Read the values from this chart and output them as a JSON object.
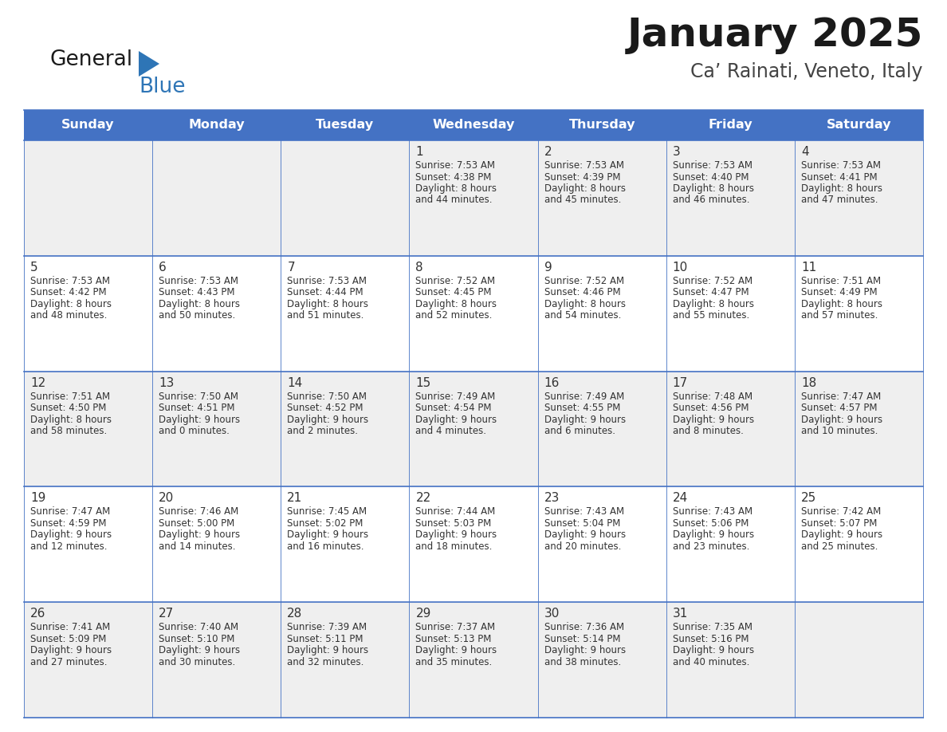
{
  "title": "January 2025",
  "subtitle": "Ca’ Rainati, Veneto, Italy",
  "header_bg": "#4472c4",
  "header_text": "#ffffff",
  "row_bg_odd": "#efefef",
  "row_bg_even": "#ffffff",
  "separator_color": "#4472c4",
  "text_color": "#333333",
  "days_of_week": [
    "Sunday",
    "Monday",
    "Tuesday",
    "Wednesday",
    "Thursday",
    "Friday",
    "Saturday"
  ],
  "calendar": [
    [
      null,
      null,
      null,
      {
        "day": 1,
        "sunrise": "7:53 AM",
        "sunset": "4:38 PM",
        "hours": 8,
        "minutes": 44
      },
      {
        "day": 2,
        "sunrise": "7:53 AM",
        "sunset": "4:39 PM",
        "hours": 8,
        "minutes": 45
      },
      {
        "day": 3,
        "sunrise": "7:53 AM",
        "sunset": "4:40 PM",
        "hours": 8,
        "minutes": 46
      },
      {
        "day": 4,
        "sunrise": "7:53 AM",
        "sunset": "4:41 PM",
        "hours": 8,
        "minutes": 47
      }
    ],
    [
      {
        "day": 5,
        "sunrise": "7:53 AM",
        "sunset": "4:42 PM",
        "hours": 8,
        "minutes": 48
      },
      {
        "day": 6,
        "sunrise": "7:53 AM",
        "sunset": "4:43 PM",
        "hours": 8,
        "minutes": 50
      },
      {
        "day": 7,
        "sunrise": "7:53 AM",
        "sunset": "4:44 PM",
        "hours": 8,
        "minutes": 51
      },
      {
        "day": 8,
        "sunrise": "7:52 AM",
        "sunset": "4:45 PM",
        "hours": 8,
        "minutes": 52
      },
      {
        "day": 9,
        "sunrise": "7:52 AM",
        "sunset": "4:46 PM",
        "hours": 8,
        "minutes": 54
      },
      {
        "day": 10,
        "sunrise": "7:52 AM",
        "sunset": "4:47 PM",
        "hours": 8,
        "minutes": 55
      },
      {
        "day": 11,
        "sunrise": "7:51 AM",
        "sunset": "4:49 PM",
        "hours": 8,
        "minutes": 57
      }
    ],
    [
      {
        "day": 12,
        "sunrise": "7:51 AM",
        "sunset": "4:50 PM",
        "hours": 8,
        "minutes": 58
      },
      {
        "day": 13,
        "sunrise": "7:50 AM",
        "sunset": "4:51 PM",
        "hours": 9,
        "minutes": 0
      },
      {
        "day": 14,
        "sunrise": "7:50 AM",
        "sunset": "4:52 PM",
        "hours": 9,
        "minutes": 2
      },
      {
        "day": 15,
        "sunrise": "7:49 AM",
        "sunset": "4:54 PM",
        "hours": 9,
        "minutes": 4
      },
      {
        "day": 16,
        "sunrise": "7:49 AM",
        "sunset": "4:55 PM",
        "hours": 9,
        "minutes": 6
      },
      {
        "day": 17,
        "sunrise": "7:48 AM",
        "sunset": "4:56 PM",
        "hours": 9,
        "minutes": 8
      },
      {
        "day": 18,
        "sunrise": "7:47 AM",
        "sunset": "4:57 PM",
        "hours": 9,
        "minutes": 10
      }
    ],
    [
      {
        "day": 19,
        "sunrise": "7:47 AM",
        "sunset": "4:59 PM",
        "hours": 9,
        "minutes": 12
      },
      {
        "day": 20,
        "sunrise": "7:46 AM",
        "sunset": "5:00 PM",
        "hours": 9,
        "minutes": 14
      },
      {
        "day": 21,
        "sunrise": "7:45 AM",
        "sunset": "5:02 PM",
        "hours": 9,
        "minutes": 16
      },
      {
        "day": 22,
        "sunrise": "7:44 AM",
        "sunset": "5:03 PM",
        "hours": 9,
        "minutes": 18
      },
      {
        "day": 23,
        "sunrise": "7:43 AM",
        "sunset": "5:04 PM",
        "hours": 9,
        "minutes": 20
      },
      {
        "day": 24,
        "sunrise": "7:43 AM",
        "sunset": "5:06 PM",
        "hours": 9,
        "minutes": 23
      },
      {
        "day": 25,
        "sunrise": "7:42 AM",
        "sunset": "5:07 PM",
        "hours": 9,
        "minutes": 25
      }
    ],
    [
      {
        "day": 26,
        "sunrise": "7:41 AM",
        "sunset": "5:09 PM",
        "hours": 9,
        "minutes": 27
      },
      {
        "day": 27,
        "sunrise": "7:40 AM",
        "sunset": "5:10 PM",
        "hours": 9,
        "minutes": 30
      },
      {
        "day": 28,
        "sunrise": "7:39 AM",
        "sunset": "5:11 PM",
        "hours": 9,
        "minutes": 32
      },
      {
        "day": 29,
        "sunrise": "7:37 AM",
        "sunset": "5:13 PM",
        "hours": 9,
        "minutes": 35
      },
      {
        "day": 30,
        "sunrise": "7:36 AM",
        "sunset": "5:14 PM",
        "hours": 9,
        "minutes": 38
      },
      {
        "day": 31,
        "sunrise": "7:35 AM",
        "sunset": "5:16 PM",
        "hours": 9,
        "minutes": 40
      },
      null
    ]
  ]
}
